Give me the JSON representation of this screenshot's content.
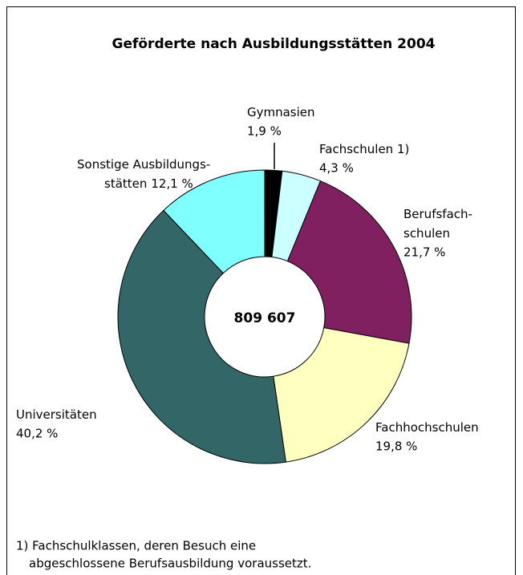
{
  "chart_data": {
    "type": "donut",
    "title": "Geförderte nach Ausbildungsstätten 2004",
    "center_label": "809 607",
    "categories": [
      "Gymnasien",
      "Fachschulen 1)",
      "Berufsfach-\nschulen",
      "Fachhochschulen",
      "Universitäten",
      "Sonstige Ausbildungs-\nstätten"
    ],
    "values": [
      1.9,
      4.3,
      21.7,
      19.8,
      40.2,
      12.1
    ],
    "value_labels": [
      "1,9 %",
      "4,3 %",
      "21,7 %",
      "19,8 %",
      "40,2 %",
      "12,1 %"
    ],
    "colors": [
      "#000000",
      "#ccffff",
      "#802060",
      "#ffffc0",
      "#336666",
      "#80ffff"
    ],
    "footnote": [
      "1) Fachschulklassen, deren Besuch eine",
      "abgeschlossene Berufsausbildung voraussetzt."
    ]
  }
}
